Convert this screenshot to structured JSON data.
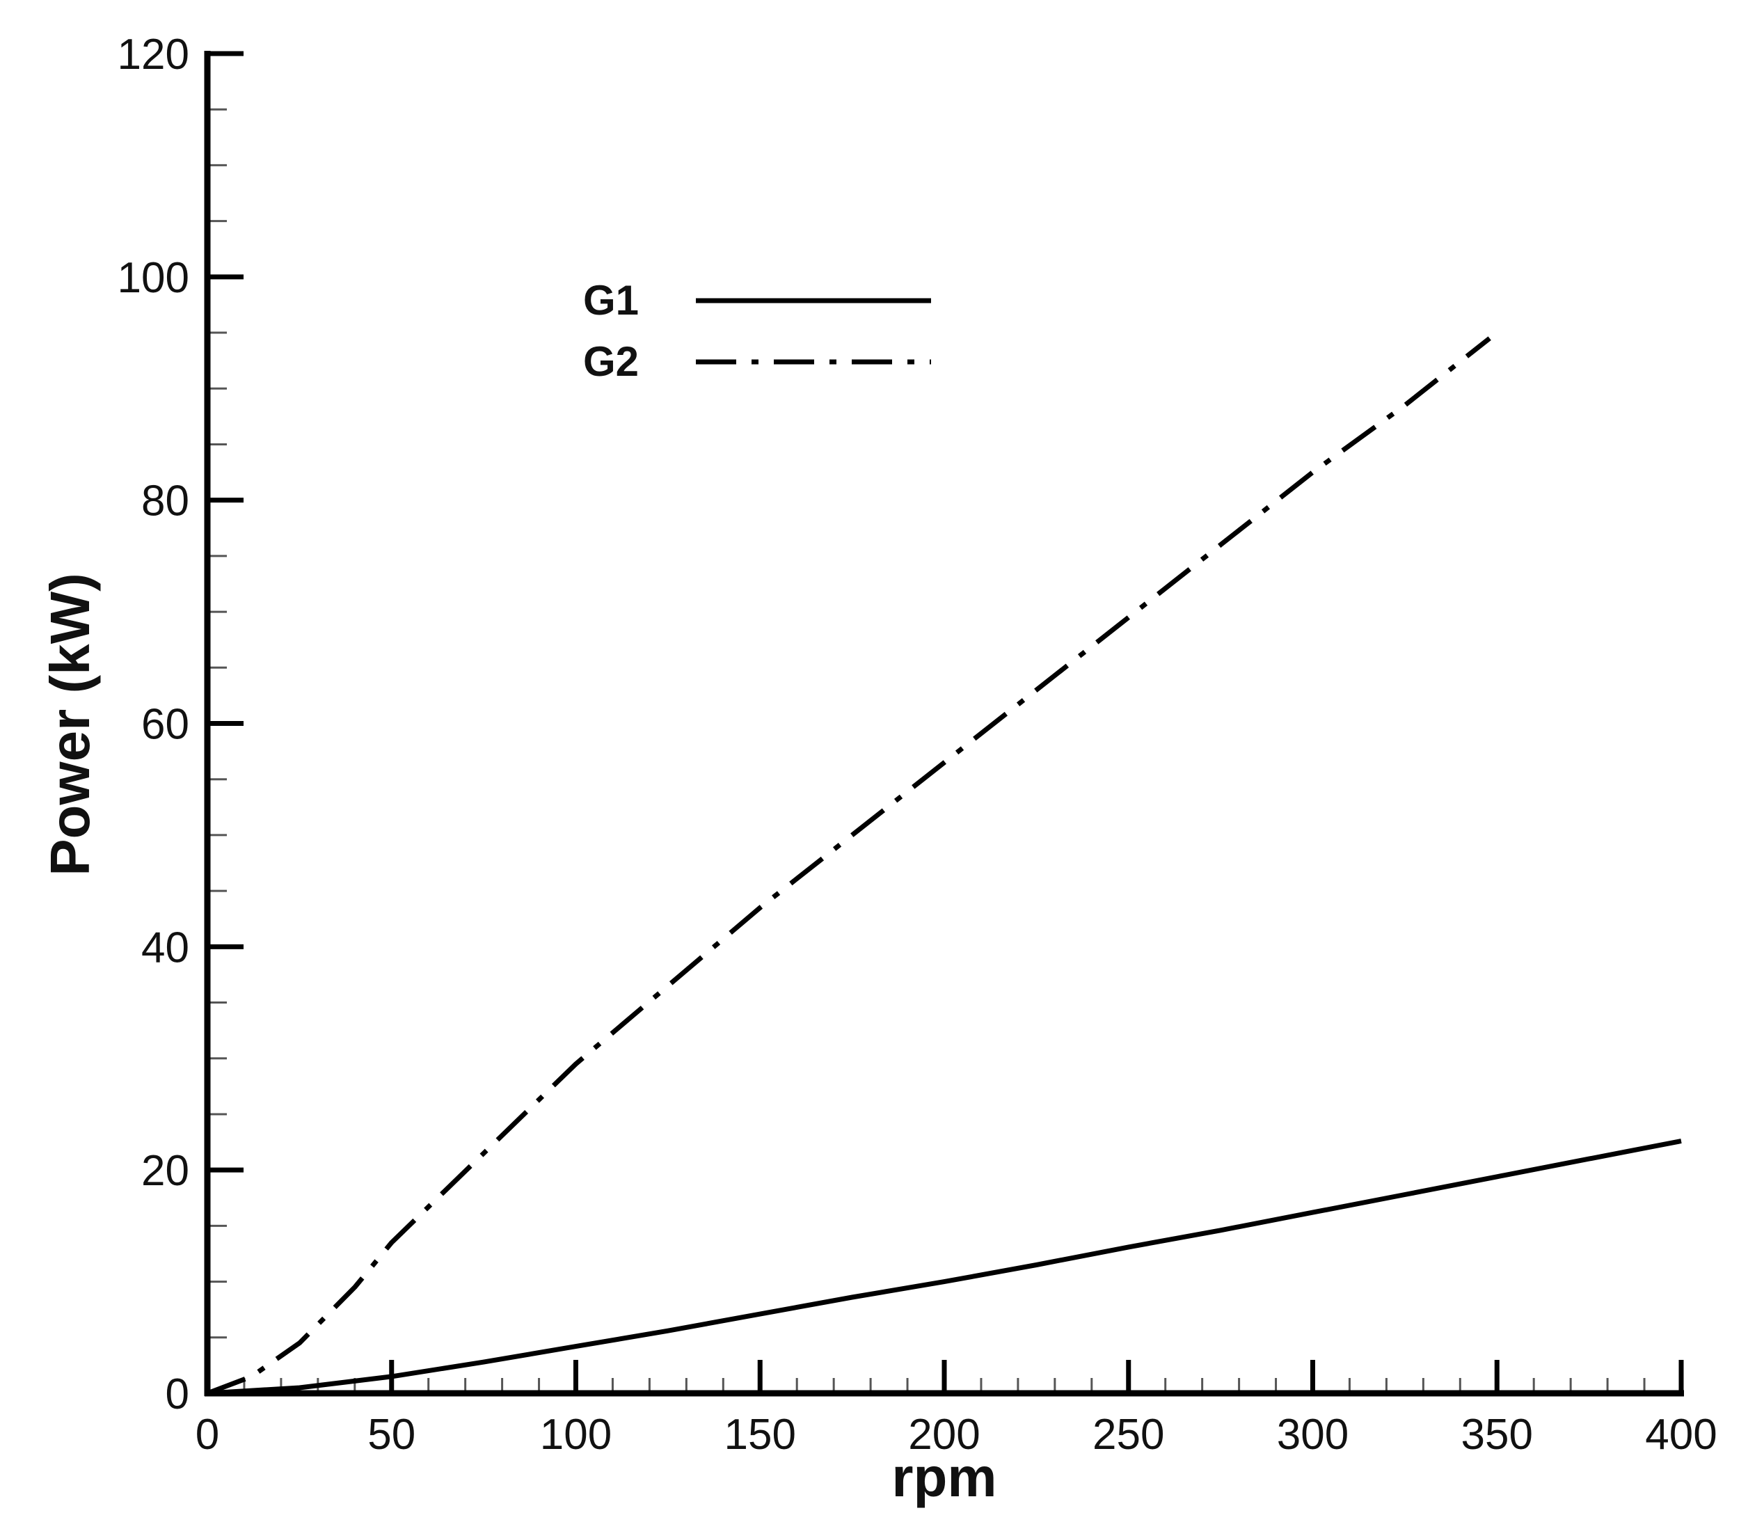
{
  "chart_data": {
    "type": "line",
    "xlabel": "rpm",
    "ylabel": "Power (kW)",
    "xlim": [
      0,
      400
    ],
    "ylim": [
      0,
      120
    ],
    "x_ticks": [
      0,
      50,
      100,
      150,
      200,
      250,
      300,
      350,
      400
    ],
    "x_tick_labels": [
      "0",
      "50",
      "100",
      "150",
      "200",
      "250",
      "300",
      "350",
      "400"
    ],
    "y_ticks": [
      0,
      20,
      40,
      60,
      80,
      100,
      120
    ],
    "y_tick_labels": [
      "0",
      "20",
      "40",
      "60",
      "80",
      "100",
      "120"
    ],
    "x_minor_step": 10,
    "y_minor_step": 5,
    "grid": false,
    "legend": {
      "placement": "top-center"
    },
    "series": [
      {
        "name": "G1",
        "line_style": "solid",
        "color": "#000000",
        "x": [
          0,
          25,
          50,
          75,
          100,
          125,
          150,
          175,
          200,
          225,
          250,
          275,
          300,
          325,
          350,
          375,
          400
        ],
        "y": [
          0,
          0.5,
          1.5,
          2.8,
          4.2,
          5.6,
          7.1,
          8.6,
          10.0,
          11.5,
          13.1,
          14.6,
          16.2,
          17.8,
          19.4,
          21.0,
          22.6
        ]
      },
      {
        "name": "G2",
        "line_style": "dash-dot",
        "color": "#000000",
        "x": [
          0,
          12,
          25,
          40,
          50,
          75,
          100,
          125,
          150,
          175,
          200,
          225,
          250,
          275,
          300,
          325,
          348
        ],
        "y": [
          0,
          1.5,
          4.5,
          9.5,
          13.5,
          21.5,
          29.5,
          36.5,
          43.5,
          50.0,
          56.5,
          63.0,
          69.5,
          76.0,
          82.5,
          88.5,
          94.5
        ]
      }
    ]
  }
}
